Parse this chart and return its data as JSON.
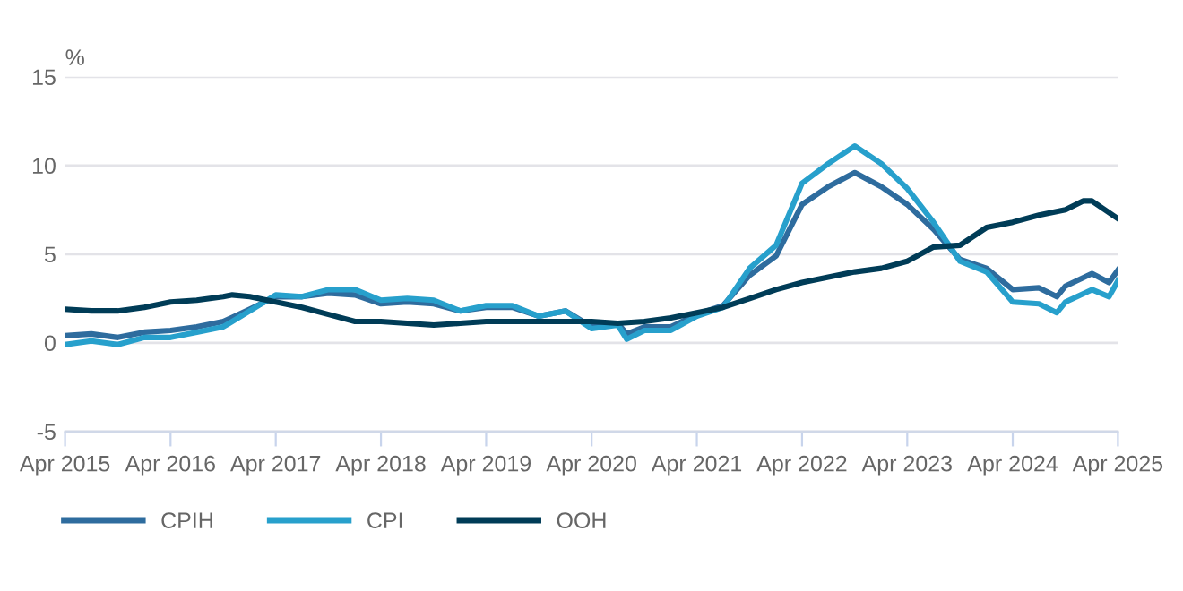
{
  "chart_data": {
    "type": "line",
    "ylabel": "%",
    "series": [
      {
        "name": "CPIH",
        "color": "#2e6c9e",
        "x": [
          "2015-04",
          "2015-07",
          "2015-10",
          "2016-01",
          "2016-04",
          "2016-07",
          "2016-10",
          "2017-01",
          "2017-04",
          "2017-07",
          "2017-10",
          "2018-01",
          "2018-04",
          "2018-07",
          "2018-10",
          "2019-01",
          "2019-04",
          "2019-07",
          "2019-10",
          "2020-01",
          "2020-04",
          "2020-07",
          "2020-08",
          "2020-10",
          "2021-01",
          "2021-04",
          "2021-07",
          "2021-10",
          "2022-01",
          "2022-04",
          "2022-07",
          "2022-10",
          "2023-01",
          "2023-04",
          "2023-07",
          "2023-10",
          "2024-01",
          "2024-04",
          "2024-07",
          "2024-09",
          "2024-10",
          "2025-01",
          "2025-03",
          "2025-04"
        ],
        "values": [
          0.4,
          0.5,
          0.3,
          0.6,
          0.7,
          0.9,
          1.2,
          1.9,
          2.6,
          2.6,
          2.8,
          2.7,
          2.2,
          2.3,
          2.2,
          1.8,
          2.0,
          2.0,
          1.5,
          1.8,
          0.9,
          1.1,
          0.5,
          0.9,
          0.9,
          1.6,
          2.1,
          3.8,
          4.9,
          7.8,
          8.8,
          9.6,
          8.8,
          7.8,
          6.4,
          4.7,
          4.2,
          3.0,
          3.1,
          2.6,
          3.2,
          3.9,
          3.4,
          4.1
        ]
      },
      {
        "name": "CPI",
        "color": "#27a0cc",
        "x": [
          "2015-04",
          "2015-07",
          "2015-10",
          "2016-01",
          "2016-04",
          "2016-07",
          "2016-10",
          "2017-01",
          "2017-04",
          "2017-07",
          "2017-10",
          "2018-01",
          "2018-04",
          "2018-07",
          "2018-10",
          "2019-01",
          "2019-04",
          "2019-07",
          "2019-10",
          "2020-01",
          "2020-04",
          "2020-07",
          "2020-08",
          "2020-10",
          "2021-01",
          "2021-04",
          "2021-07",
          "2021-10",
          "2022-01",
          "2022-04",
          "2022-07",
          "2022-10",
          "2023-01",
          "2023-04",
          "2023-07",
          "2023-10",
          "2024-01",
          "2024-04",
          "2024-07",
          "2024-09",
          "2024-10",
          "2025-01",
          "2025-03",
          "2025-04"
        ],
        "values": [
          -0.1,
          0.1,
          -0.1,
          0.3,
          0.3,
          0.6,
          0.9,
          1.8,
          2.7,
          2.6,
          3.0,
          3.0,
          2.4,
          2.5,
          2.4,
          1.8,
          2.1,
          2.1,
          1.5,
          1.8,
          0.8,
          1.0,
          0.2,
          0.7,
          0.7,
          1.5,
          2.0,
          4.2,
          5.5,
          9.0,
          10.1,
          11.1,
          10.1,
          8.7,
          6.8,
          4.6,
          4.0,
          2.3,
          2.2,
          1.7,
          2.3,
          3.0,
          2.6,
          3.5
        ]
      },
      {
        "name": "OOH",
        "color": "#003c57",
        "x": [
          "2015-04",
          "2015-07",
          "2015-10",
          "2016-01",
          "2016-04",
          "2016-07",
          "2016-10",
          "2016-11",
          "2017-01",
          "2017-04",
          "2017-07",
          "2017-10",
          "2018-01",
          "2018-04",
          "2018-07",
          "2018-10",
          "2019-01",
          "2019-04",
          "2019-07",
          "2019-10",
          "2020-01",
          "2020-04",
          "2020-07",
          "2020-10",
          "2021-01",
          "2021-04",
          "2021-07",
          "2021-10",
          "2022-01",
          "2022-04",
          "2022-07",
          "2022-10",
          "2023-01",
          "2023-04",
          "2023-07",
          "2023-10",
          "2024-01",
          "2024-04",
          "2024-07",
          "2024-10",
          "2024-12",
          "2025-01",
          "2025-04"
        ],
        "values": [
          1.9,
          1.8,
          1.8,
          2.0,
          2.3,
          2.4,
          2.6,
          2.7,
          2.6,
          2.3,
          2.0,
          1.6,
          1.2,
          1.2,
          1.1,
          1.0,
          1.1,
          1.2,
          1.2,
          1.2,
          1.2,
          1.2,
          1.1,
          1.2,
          1.4,
          1.7,
          2.0,
          2.5,
          3.0,
          3.4,
          3.7,
          4.0,
          4.2,
          4.6,
          5.4,
          5.5,
          6.5,
          6.8,
          7.2,
          7.5,
          8.0,
          8.0,
          7.0
        ]
      }
    ],
    "xlim": [
      "2015-04",
      "2025-04"
    ],
    "xticks": [
      {
        "value": "2015-04",
        "label": "Apr 2015"
      },
      {
        "value": "2016-04",
        "label": "Apr 2016"
      },
      {
        "value": "2017-04",
        "label": "Apr 2017"
      },
      {
        "value": "2018-04",
        "label": "Apr 2018"
      },
      {
        "value": "2019-04",
        "label": "Apr 2019"
      },
      {
        "value": "2020-04",
        "label": "Apr 2020"
      },
      {
        "value": "2021-04",
        "label": "Apr 2021"
      },
      {
        "value": "2022-04",
        "label": "Apr 2022"
      },
      {
        "value": "2023-04",
        "label": "Apr 2023"
      },
      {
        "value": "2024-04",
        "label": "Apr 2024"
      },
      {
        "value": "2025-04",
        "label": "Apr 2025"
      }
    ],
    "ylim": [
      -5,
      15
    ],
    "yticks": [
      -5,
      0,
      5,
      10,
      15
    ],
    "grid": "y",
    "legend": "bottom left",
    "marker": "none",
    "line_style": "solid"
  }
}
